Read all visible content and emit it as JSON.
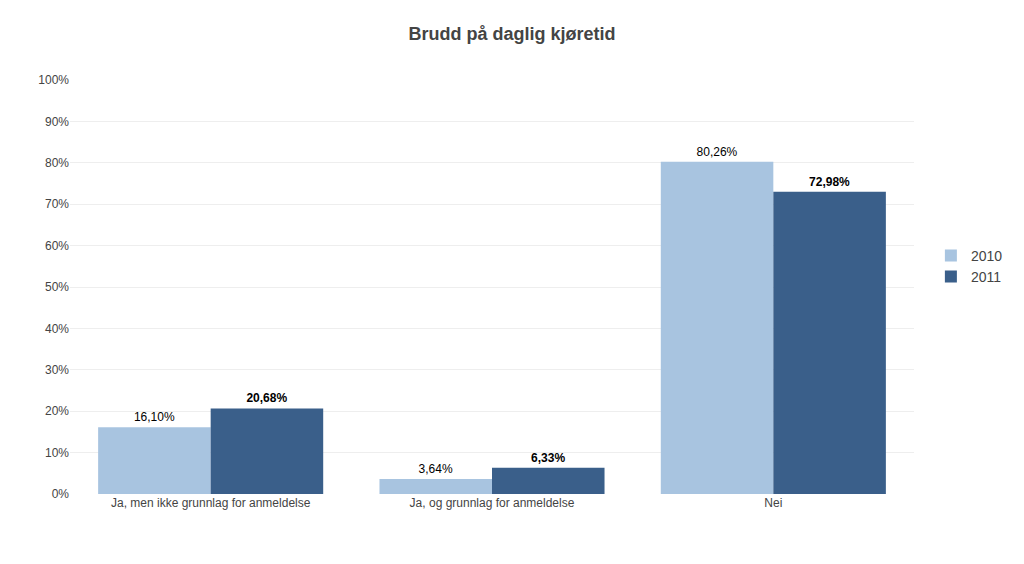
{
  "chart_data": {
    "type": "bar",
    "title": "Brudd på daglig kjøretid",
    "categories": [
      "Ja, men ikke grunnlag for anmeldelse",
      "Ja, og grunnlag for anmeldelse",
      "Nei"
    ],
    "series": [
      {
        "name": "2010",
        "color": "#a8c4e0",
        "values": [
          16.1,
          3.64,
          80.26
        ],
        "value_labels": [
          "16,10%",
          "3,64%",
          "80,26%"
        ]
      },
      {
        "name": "2011",
        "color": "#3a5f8a",
        "values": [
          20.68,
          6.33,
          72.98
        ],
        "value_labels": [
          "20,68%",
          "6,33%",
          "72,98%"
        ]
      }
    ],
    "ylim": [
      0,
      100
    ],
    "yticks": [
      {
        "value": 0,
        "label": "0%"
      },
      {
        "value": 10,
        "label": "10%"
      },
      {
        "value": 20,
        "label": "20%"
      },
      {
        "value": 30,
        "label": "30%"
      },
      {
        "value": 40,
        "label": "40%"
      },
      {
        "value": 50,
        "label": "50%"
      },
      {
        "value": 60,
        "label": "60%"
      },
      {
        "value": 70,
        "label": "70%"
      },
      {
        "value": 80,
        "label": "80%"
      },
      {
        "value": 90,
        "label": "90%"
      },
      {
        "value": 100,
        "label": "100%"
      }
    ],
    "grid": true,
    "legend": "right",
    "data_labels": true
  }
}
